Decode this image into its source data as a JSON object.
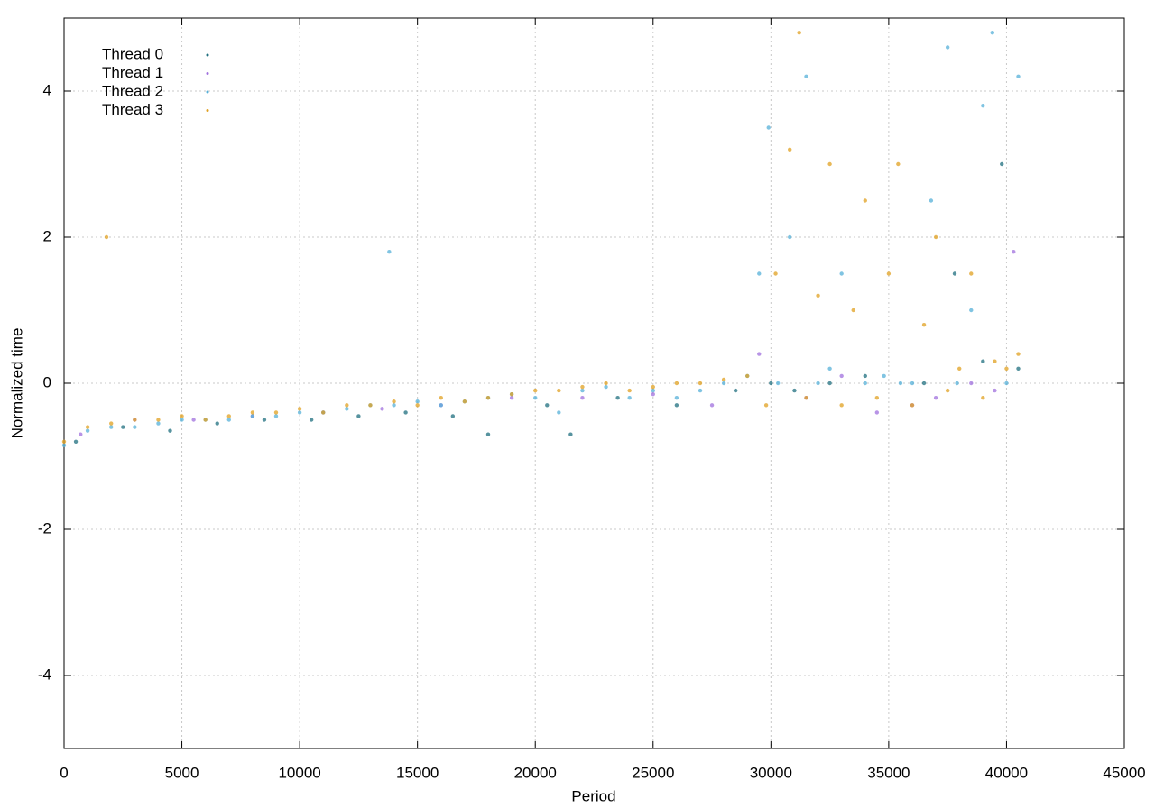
{
  "chart_data": {
    "type": "scatter",
    "x_label": "Period",
    "y_label": "Normalized time",
    "xlim": [
      0,
      45000
    ],
    "xticks": [
      0,
      5000,
      10000,
      15000,
      20000,
      25000,
      30000,
      35000,
      40000,
      45000
    ],
    "ylim": [
      -5,
      5
    ],
    "yticks": [
      -4,
      -2,
      0,
      2,
      4
    ],
    "grid": true,
    "legend": "top-left",
    "series": [
      {
        "name": "Thread 0",
        "color": "#1f6f7f",
        "x": [
          500,
          2500,
          4500,
          6500,
          8500,
          10500,
          12500,
          14500,
          16500,
          18000,
          20500,
          21500,
          23500,
          26000,
          28500,
          30000,
          31000,
          32500,
          34000,
          36500,
          37800,
          39000,
          39800,
          40500
        ],
        "values": [
          -0.8,
          -0.6,
          -0.65,
          -0.55,
          -0.5,
          -0.5,
          -0.45,
          -0.4,
          -0.45,
          -0.7,
          -0.3,
          -0.7,
          -0.2,
          -0.3,
          -0.1,
          0.0,
          -0.1,
          0.0,
          0.1,
          0.0,
          1.5,
          0.3,
          3.0,
          0.2
        ]
      },
      {
        "name": "Thread 1",
        "color": "#a070dd",
        "x": [
          700,
          3000,
          5500,
          8000,
          11000,
          13500,
          16000,
          19000,
          22000,
          25000,
          27500,
          29500,
          31500,
          33000,
          34500,
          36000,
          37000,
          38500,
          39500,
          40300
        ],
        "values": [
          -0.7,
          -0.5,
          -0.5,
          -0.45,
          -0.4,
          -0.35,
          -0.3,
          -0.2,
          -0.2,
          -0.15,
          -0.3,
          0.4,
          -0.2,
          0.1,
          -0.4,
          -0.3,
          -0.2,
          0.0,
          -0.1,
          1.8
        ]
      },
      {
        "name": "Thread 2",
        "color": "#56b0d8",
        "x": [
          0,
          1000,
          2000,
          3000,
          4000,
          5000,
          6000,
          7000,
          8000,
          9000,
          10000,
          11000,
          12000,
          13000,
          13800,
          14000,
          15000,
          16000,
          17000,
          18000,
          19000,
          20000,
          21000,
          22000,
          23000,
          24000,
          25000,
          26000,
          27000,
          28000,
          29000,
          29500,
          29900,
          30300,
          30800,
          31500,
          32000,
          32500,
          33000,
          34000,
          34800,
          35500,
          36000,
          36800,
          37500,
          37900,
          38500,
          39000,
          39400,
          40000,
          40500
        ],
        "values": [
          -0.85,
          -0.65,
          -0.6,
          -0.6,
          -0.55,
          -0.5,
          -0.5,
          -0.5,
          -0.45,
          -0.45,
          -0.4,
          -0.4,
          -0.35,
          -0.3,
          1.8,
          -0.3,
          -0.25,
          -0.3,
          -0.25,
          -0.2,
          -0.15,
          -0.2,
          -0.4,
          -0.1,
          -0.05,
          -0.2,
          -0.1,
          -0.2,
          -0.1,
          0.0,
          0.1,
          1.5,
          3.5,
          0.0,
          2.0,
          4.2,
          0.0,
          0.2,
          1.5,
          0.0,
          0.1,
          0.0,
          0.0,
          2.5,
          4.6,
          0.0,
          1.0,
          3.8,
          4.8,
          0.0,
          4.2
        ]
      },
      {
        "name": "Thread 3",
        "color": "#e0a020",
        "x": [
          0,
          1000,
          1800,
          2000,
          3000,
          4000,
          5000,
          6000,
          7000,
          8000,
          9000,
          10000,
          11000,
          12000,
          13000,
          14000,
          15000,
          16000,
          17000,
          18000,
          19000,
          20000,
          21000,
          22000,
          23000,
          24000,
          25000,
          26000,
          27000,
          28000,
          29000,
          29800,
          30200,
          30800,
          31200,
          31500,
          32000,
          32500,
          33000,
          33500,
          34000,
          34500,
          35000,
          35400,
          36000,
          36500,
          37000,
          37500,
          38000,
          38500,
          39000,
          39500,
          40000,
          40500
        ],
        "values": [
          -0.8,
          -0.6,
          2.0,
          -0.55,
          -0.5,
          -0.5,
          -0.45,
          -0.5,
          -0.45,
          -0.4,
          -0.4,
          -0.35,
          -0.4,
          -0.3,
          -0.3,
          -0.25,
          -0.3,
          -0.2,
          -0.25,
          -0.2,
          -0.15,
          -0.1,
          -0.1,
          -0.05,
          0.0,
          -0.1,
          -0.05,
          0.0,
          0.0,
          0.05,
          0.1,
          -0.3,
          1.5,
          3.2,
          4.8,
          -0.2,
          1.2,
          3.0,
          -0.3,
          1.0,
          2.5,
          -0.2,
          1.5,
          3.0,
          -0.3,
          0.8,
          2.0,
          -0.1,
          0.2,
          1.5,
          -0.2,
          0.3,
          0.2,
          0.4
        ]
      }
    ]
  }
}
